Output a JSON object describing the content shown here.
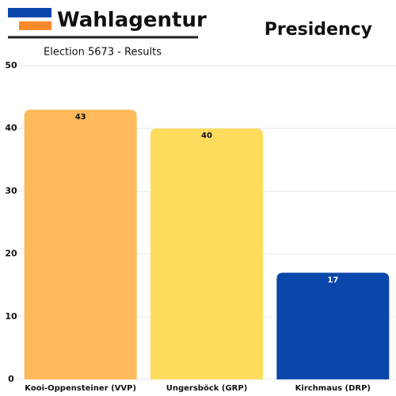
{
  "chart_data": {
    "type": "bar",
    "title": "Wahlagentur",
    "subtitle": "Election 5673 - Results",
    "heading": "Presidency",
    "categories": [
      "Kooi-Oppensteiner (VVP)",
      "Ungersböck (GRP)",
      "Kirchmaus (DRP)"
    ],
    "values": [
      43,
      40,
      17
    ],
    "colors": [
      "#fdb95a",
      "#fddb5c",
      "#0a47aa"
    ],
    "ylim": [
      0,
      50
    ],
    "yticks": [
      0,
      10,
      20,
      30,
      40,
      50
    ],
    "grid": true
  }
}
